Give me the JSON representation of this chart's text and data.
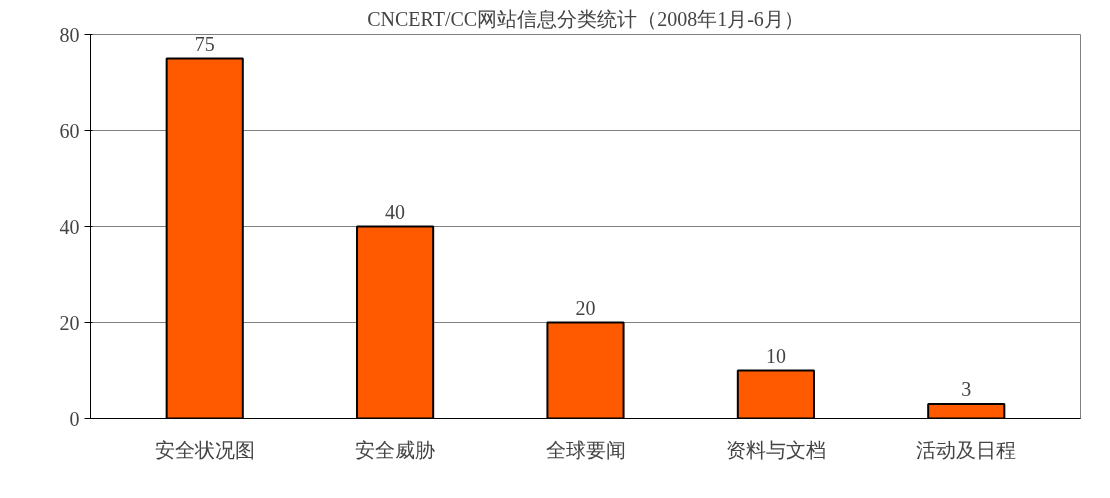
{
  "chart_data": {
    "type": "bar",
    "title": "CNCERT/CC网站信息分类统计（2008年1月-6月）",
    "categories": [
      "安全状况图",
      "安全威胁",
      "全球要闻",
      "资料与文档",
      "活动及日程"
    ],
    "values": [
      75,
      40,
      20,
      10,
      3
    ],
    "color": "#ff5a00",
    "ylim": [
      0,
      80
    ],
    "yticks": [
      0,
      20,
      40,
      60,
      80
    ],
    "grid": "y",
    "data_labels": true
  }
}
